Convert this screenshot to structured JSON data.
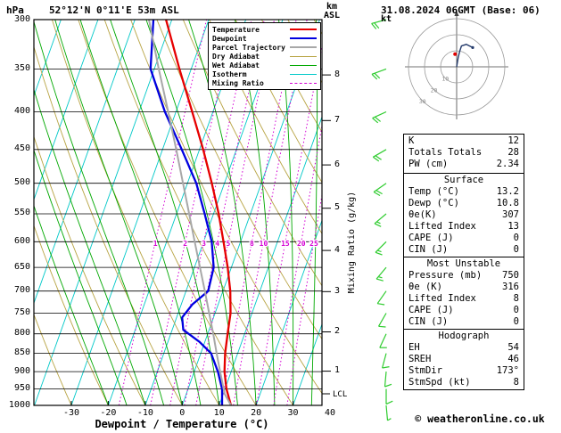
{
  "header": {
    "pressure_unit": "hPa",
    "station": "52°12'N 0°11'E 53m ASL",
    "datetime": "31.08.2024 06GMT (Base: 06)"
  },
  "colors": {
    "temperature": "#e60000",
    "dewpoint": "#0000e0",
    "parcel": "#a8a8a8",
    "dry_adiabat": "#b8a444",
    "wet_adiabat": "#00a800",
    "isotherm": "#00c8c8",
    "mixing_ratio": "#d400d4",
    "wind_barb": "#2fcc2f",
    "frame": "#000000"
  },
  "legend": {
    "items": [
      {
        "label": "Temperature",
        "color": "#e60000",
        "weight": 2.5,
        "dash": false
      },
      {
        "label": "Dewpoint",
        "color": "#0000e0",
        "weight": 2.5,
        "dash": false
      },
      {
        "label": "Parcel Trajectory",
        "color": "#a8a8a8",
        "weight": 2,
        "dash": false
      },
      {
        "label": "Dry Adiabat",
        "color": "#b8a444",
        "weight": 1.5,
        "dash": false
      },
      {
        "label": "Wet Adiabat",
        "color": "#00a800",
        "weight": 1.5,
        "dash": false
      },
      {
        "label": "Isotherm",
        "color": "#00c8c8",
        "weight": 1.5,
        "dash": false
      },
      {
        "label": "Mixing Ratio",
        "color": "#d400d4",
        "weight": 1.5,
        "dash": true
      }
    ]
  },
  "chart_data": {
    "type": "line",
    "diagram": "skew-t log-p sounding",
    "pressure_axis": {
      "unit": "hPa",
      "scale": "log",
      "ticks": [
        300,
        350,
        400,
        450,
        500,
        550,
        600,
        650,
        700,
        750,
        800,
        850,
        900,
        950,
        1000
      ]
    },
    "temperature_axis": {
      "label": "Dewpoint / Temperature (°C)",
      "unit": "°C",
      "ticks": [
        -30,
        -20,
        -10,
        0,
        10,
        20,
        30,
        40
      ]
    },
    "altitude_axis": {
      "unit_top": "km",
      "unit_bottom": "ASL",
      "ticks_km": [
        1,
        2,
        3,
        4,
        5,
        6,
        7,
        8
      ],
      "lcl_label": "LCL"
    },
    "mixing_ratio_axis": {
      "label": "Mixing Ratio (g/kg)",
      "line_values": [
        1,
        2,
        3,
        4,
        5,
        8,
        10,
        15,
        20,
        25
      ]
    },
    "background_lines": {
      "isotherm_step_c": 10,
      "dry_adiabat_step_k": 10,
      "wet_adiabat_step_c": 5
    },
    "series": [
      {
        "name": "Temperature",
        "color": "#e60000",
        "width": 2.3,
        "points": [
          [
            1000,
            13.2
          ],
          [
            950,
            10.4
          ],
          [
            900,
            8.2
          ],
          [
            850,
            6.6
          ],
          [
            800,
            5.4
          ],
          [
            750,
            4.2
          ],
          [
            700,
            2.0
          ],
          [
            650,
            -1.0
          ],
          [
            600,
            -4.6
          ],
          [
            550,
            -8.6
          ],
          [
            500,
            -13.4
          ],
          [
            450,
            -19.0
          ],
          [
            400,
            -25.6
          ],
          [
            350,
            -33.2
          ],
          [
            300,
            -41.6
          ]
        ]
      },
      {
        "name": "Dewpoint",
        "color": "#0000e0",
        "width": 2.3,
        "points": [
          [
            1000,
            10.8
          ],
          [
            950,
            9.2
          ],
          [
            900,
            6.4
          ],
          [
            850,
            2.8
          ],
          [
            820,
            -1.5
          ],
          [
            790,
            -7.0
          ],
          [
            760,
            -8.5
          ],
          [
            730,
            -7.0
          ],
          [
            700,
            -4.0
          ],
          [
            650,
            -4.8
          ],
          [
            600,
            -7.8
          ],
          [
            550,
            -12.4
          ],
          [
            500,
            -17.6
          ],
          [
            450,
            -24.8
          ],
          [
            400,
            -33.0
          ],
          [
            350,
            -41.0
          ],
          [
            300,
            -45.0
          ]
        ]
      },
      {
        "name": "Parcel Trajectory",
        "color": "#a8a8a8",
        "width": 2,
        "points": [
          [
            1000,
            13.2
          ],
          [
            965,
            10.4
          ],
          [
            900,
            7.0
          ],
          [
            850,
            4.3
          ],
          [
            800,
            1.5
          ],
          [
            750,
            -1.6
          ],
          [
            700,
            -4.9
          ],
          [
            650,
            -8.5
          ],
          [
            600,
            -12.4
          ],
          [
            550,
            -16.6
          ],
          [
            500,
            -21.2
          ],
          [
            450,
            -26.3
          ],
          [
            400,
            -32.1
          ],
          [
            350,
            -38.8
          ],
          [
            300,
            -46.2
          ]
        ]
      }
    ],
    "winds_kt": [
      [
        1000,
        175,
        5
      ],
      [
        950,
        180,
        8
      ],
      [
        900,
        185,
        10
      ],
      [
        850,
        195,
        10
      ],
      [
        800,
        205,
        10
      ],
      [
        750,
        210,
        12
      ],
      [
        700,
        215,
        12
      ],
      [
        650,
        220,
        15
      ],
      [
        600,
        225,
        15
      ],
      [
        550,
        230,
        15
      ],
      [
        500,
        235,
        18
      ],
      [
        450,
        240,
        18
      ],
      [
        400,
        245,
        20
      ],
      [
        350,
        250,
        20
      ],
      [
        300,
        255,
        22
      ]
    ]
  },
  "hodograph": {
    "unit_label": "kt",
    "rings": [
      10,
      20,
      30
    ],
    "trace_uv": [
      [
        0,
        0
      ],
      [
        1,
        6
      ],
      [
        2,
        10
      ],
      [
        3,
        13
      ],
      [
        6,
        14
      ],
      [
        10,
        12
      ]
    ],
    "storm_uv": [
      -1,
      7.9
    ],
    "storm_color": "#e00000",
    "storm_dir": "173°",
    "storm_speed_kt": 8
  },
  "stats": {
    "indices": {
      "rows": [
        {
          "label": "K",
          "value": "12"
        },
        {
          "label": "Totals Totals",
          "value": "28"
        },
        {
          "label": "PW (cm)",
          "value": "2.34"
        }
      ]
    },
    "surface": {
      "title": "Surface",
      "rows": [
        {
          "label": "Temp (°C)",
          "value": "13.2"
        },
        {
          "label": "Dewp (°C)",
          "value": "10.8"
        },
        {
          "label": "θe(K)",
          "value": "307"
        },
        {
          "label": "Lifted Index",
          "value": "13"
        },
        {
          "label": "CAPE (J)",
          "value": "0"
        },
        {
          "label": "CIN (J)",
          "value": "0"
        }
      ]
    },
    "most_unstable": {
      "title": "Most Unstable",
      "rows": [
        {
          "label": "Pressure (mb)",
          "value": "750"
        },
        {
          "label": "θe (K)",
          "value": "316"
        },
        {
          "label": "Lifted Index",
          "value": "8"
        },
        {
          "label": "CAPE (J)",
          "value": "0"
        },
        {
          "label": "CIN (J)",
          "value": "0"
        }
      ]
    },
    "hodograph_stats": {
      "title": "Hodograph",
      "rows": [
        {
          "label": "EH",
          "value": "54"
        },
        {
          "label": "SREH",
          "value": "46"
        },
        {
          "label": "StmDir",
          "value": "173°"
        },
        {
          "label": "StmSpd (kt)",
          "value": "8"
        }
      ]
    }
  },
  "footer": {
    "copyright": "© weatheronline.co.uk"
  }
}
